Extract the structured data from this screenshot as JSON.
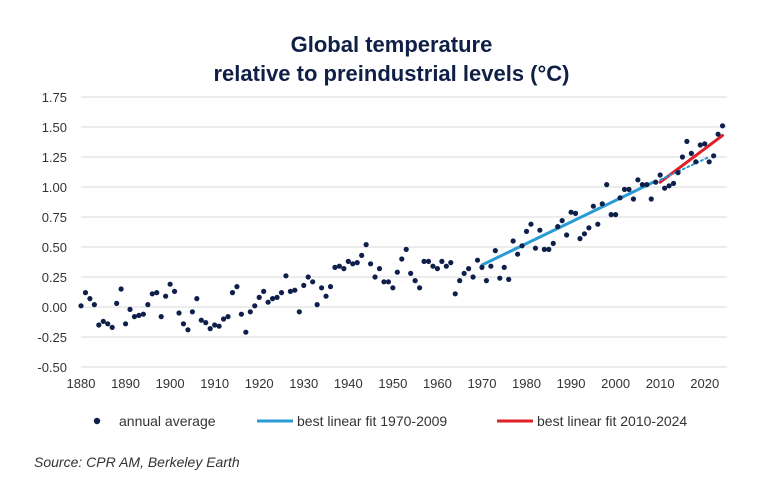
{
  "chart_data": {
    "type": "scatter",
    "title_line1": "Global temperature",
    "title_line2": "relative to preindustrial levels (°C)",
    "xlabel": "",
    "ylabel": "",
    "xlim": [
      1880,
      2025
    ],
    "ylim": [
      -0.5,
      1.75
    ],
    "x_ticks": [
      1880,
      1890,
      1900,
      1910,
      1920,
      1930,
      1940,
      1950,
      1960,
      1970,
      1980,
      1990,
      2000,
      2010,
      2020
    ],
    "y_ticks": [
      "1.75",
      "1.50",
      "1.25",
      "1.00",
      "0.75",
      "0.50",
      "0.25",
      "0.00",
      "-0.25",
      "-0.50"
    ],
    "grid": "horizontal",
    "legend_position": "bottom",
    "series": [
      {
        "name": "annual average",
        "kind": "scatter",
        "color": "#0d1f4a",
        "x": [
          1880,
          1881,
          1882,
          1883,
          1884,
          1885,
          1886,
          1887,
          1888,
          1889,
          1890,
          1891,
          1892,
          1893,
          1894,
          1895,
          1896,
          1897,
          1898,
          1899,
          1900,
          1901,
          1902,
          1903,
          1904,
          1905,
          1906,
          1907,
          1908,
          1909,
          1910,
          1911,
          1912,
          1913,
          1914,
          1915,
          1916,
          1917,
          1918,
          1919,
          1920,
          1921,
          1922,
          1923,
          1924,
          1925,
          1926,
          1927,
          1928,
          1929,
          1930,
          1931,
          1932,
          1933,
          1934,
          1935,
          1936,
          1937,
          1938,
          1939,
          1940,
          1941,
          1942,
          1943,
          1944,
          1945,
          1946,
          1947,
          1948,
          1949,
          1950,
          1951,
          1952,
          1953,
          1954,
          1955,
          1956,
          1957,
          1958,
          1959,
          1960,
          1961,
          1962,
          1963,
          1964,
          1965,
          1966,
          1967,
          1968,
          1969,
          1970,
          1971,
          1972,
          1973,
          1974,
          1975,
          1976,
          1977,
          1978,
          1979,
          1980,
          1981,
          1982,
          1983,
          1984,
          1985,
          1986,
          1987,
          1988,
          1989,
          1990,
          1991,
          1992,
          1993,
          1994,
          1995,
          1996,
          1997,
          1998,
          1999,
          2000,
          2001,
          2002,
          2003,
          2004,
          2005,
          2006,
          2007,
          2008,
          2009,
          2010,
          2011,
          2012,
          2013,
          2014,
          2015,
          2016,
          2017,
          2018,
          2019,
          2020,
          2021,
          2022,
          2023,
          2024
        ],
        "values": [
          0.01,
          0.12,
          0.07,
          0.02,
          -0.15,
          -0.12,
          -0.14,
          -0.17,
          0.03,
          0.15,
          -0.14,
          -0.02,
          -0.08,
          -0.07,
          -0.06,
          0.02,
          0.11,
          0.12,
          -0.08,
          0.09,
          0.19,
          0.13,
          -0.05,
          -0.14,
          -0.19,
          -0.04,
          0.07,
          -0.11,
          -0.13,
          -0.18,
          -0.15,
          -0.16,
          -0.1,
          -0.08,
          0.12,
          0.17,
          -0.06,
          -0.21,
          -0.04,
          0.01,
          0.08,
          0.13,
          0.04,
          0.07,
          0.08,
          0.12,
          0.26,
          0.13,
          0.14,
          -0.04,
          0.18,
          0.25,
          0.21,
          0.02,
          0.16,
          0.09,
          0.17,
          0.33,
          0.34,
          0.32,
          0.38,
          0.36,
          0.37,
          0.43,
          0.52,
          0.36,
          0.25,
          0.32,
          0.21,
          0.21,
          0.16,
          0.29,
          0.4,
          0.48,
          0.28,
          0.22,
          0.16,
          0.38,
          0.38,
          0.34,
          0.32,
          0.38,
          0.34,
          0.37,
          0.11,
          0.22,
          0.28,
          0.32,
          0.25,
          0.39,
          0.33,
          0.22,
          0.34,
          0.47,
          0.24,
          0.33,
          0.23,
          0.55,
          0.44,
          0.51,
          0.63,
          0.69,
          0.49,
          0.64,
          0.48,
          0.48,
          0.53,
          0.67,
          0.72,
          0.6,
          0.79,
          0.78,
          0.57,
          0.61,
          0.66,
          0.84,
          0.69,
          0.86,
          1.02,
          0.77,
          0.77,
          0.91,
          0.98,
          0.98,
          0.9,
          1.06,
          1.02,
          1.02,
          0.9,
          1.04,
          1.1,
          0.99,
          1.01,
          1.03,
          1.12,
          1.25,
          1.38,
          1.28,
          1.21,
          1.35,
          1.36,
          1.21,
          1.26,
          1.44,
          1.51
        ]
      },
      {
        "name": "best linear fit 1970-2009",
        "kind": "line",
        "color": "#2a9bd5",
        "x": [
          1970,
          2009
        ],
        "values": [
          0.35,
          1.05
        ]
      },
      {
        "name": "best linear fit 2010-2024",
        "kind": "line",
        "color": "#e01f26",
        "x": [
          2010,
          2024
        ],
        "values": [
          1.04,
          1.43
        ]
      },
      {
        "name": "extension",
        "kind": "dotted",
        "color": "#2a9bd5",
        "x": [
          2010,
          2021
        ],
        "values": [
          1.06,
          1.25
        ]
      }
    ],
    "source": "Source: CPR AM, Berkeley Earth"
  }
}
